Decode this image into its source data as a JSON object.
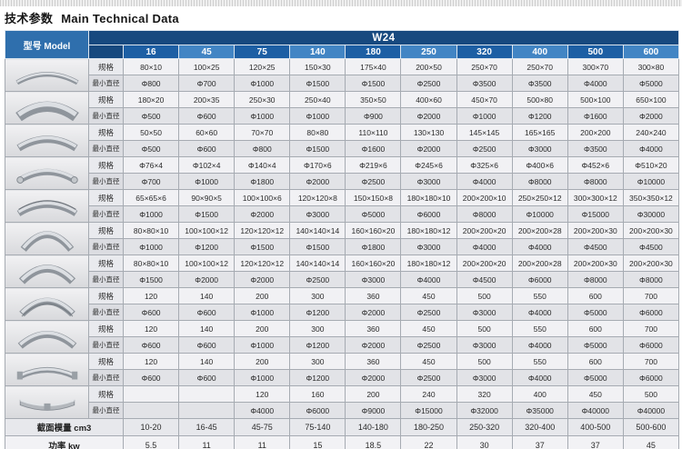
{
  "page_title": {
    "cn": "技术参数",
    "en": "Main Technical Data"
  },
  "colors": {
    "series_navy": "#17497f",
    "model_blue": "#2f6fad",
    "col_dark": "#1d5fa4",
    "col_light": "#4285c4"
  },
  "table": {
    "model_header": "型号 Model",
    "series_header": "W24",
    "columns": [
      "16",
      "45",
      "75",
      "140",
      "180",
      "250",
      "320",
      "400",
      "500",
      "600"
    ],
    "row_labels": {
      "spec": "规格",
      "min_dia": "最小直径"
    },
    "profiles": [
      {
        "icon": "flat-bar-profile-icon",
        "spec": [
          "80×10",
          "100×25",
          "120×25",
          "150×30",
          "175×40",
          "200×50",
          "250×70",
          "250×70",
          "300×70",
          "300×80"
        ],
        "min_dia": [
          "Φ800",
          "Φ700",
          "Φ1000",
          "Φ1500",
          "Φ1500",
          "Φ2500",
          "Φ3500",
          "Φ3500",
          "Φ4000",
          "Φ5000"
        ]
      },
      {
        "icon": "flat-bar-hard-way-profile-icon",
        "spec": [
          "180×20",
          "200×35",
          "250×30",
          "250×40",
          "350×50",
          "400×60",
          "450×70",
          "500×80",
          "500×100",
          "650×100"
        ],
        "min_dia": [
          "Φ500",
          "Φ600",
          "Φ1000",
          "Φ1000",
          "Φ900",
          "Φ2000",
          "Φ1000",
          "Φ1200",
          "Φ1600",
          "Φ2000"
        ]
      },
      {
        "icon": "square-bar-profile-icon",
        "spec": [
          "50×50",
          "60×60",
          "70×70",
          "80×80",
          "110×110",
          "130×130",
          "145×145",
          "165×165",
          "200×200",
          "240×240"
        ],
        "min_dia": [
          "Φ500",
          "Φ600",
          "Φ800",
          "Φ1500",
          "Φ1600",
          "Φ2000",
          "Φ2500",
          "Φ3000",
          "Φ3500",
          "Φ4000"
        ]
      },
      {
        "icon": "pipe-profile-icon",
        "spec": [
          "Φ76×4",
          "Φ102×4",
          "Φ140×4",
          "Φ170×6",
          "Φ219×6",
          "Φ245×6",
          "Φ325×6",
          "Φ400×6",
          "Φ452×6",
          "Φ510×20"
        ],
        "min_dia": [
          "Φ700",
          "Φ1000",
          "Φ1800",
          "Φ2000",
          "Φ2500",
          "Φ3000",
          "Φ4000",
          "Φ8000",
          "Φ8000",
          "Φ10000"
        ]
      },
      {
        "icon": "angle-leg-in-profile-icon",
        "spec": [
          "65×65×6",
          "90×90×5",
          "100×100×6",
          "120×120×8",
          "150×150×8",
          "180×180×10",
          "200×200×10",
          "250×250×12",
          "300×300×12",
          "350×350×12"
        ],
        "min_dia": [
          "Φ1000",
          "Φ1500",
          "Φ2000",
          "Φ3000",
          "Φ5000",
          "Φ6000",
          "Φ8000",
          "Φ10000",
          "Φ15000",
          "Φ30000"
        ]
      },
      {
        "icon": "angle-leg-out-profile-icon",
        "spec": [
          "80×80×10",
          "100×100×12",
          "120×120×12",
          "140×140×14",
          "160×160×20",
          "180×180×12",
          "200×200×20",
          "200×200×28",
          "200×200×30",
          "200×200×30"
        ],
        "min_dia": [
          "Φ1000",
          "Φ1200",
          "Φ1500",
          "Φ1500",
          "Φ1800",
          "Φ3000",
          "Φ4000",
          "Φ4000",
          "Φ4500",
          "Φ4500"
        ]
      },
      {
        "icon": "angle-arch-profile-icon",
        "spec": [
          "80×80×10",
          "100×100×12",
          "120×120×12",
          "140×140×14",
          "160×160×20",
          "180×180×12",
          "200×200×20",
          "200×200×28",
          "200×200×30",
          "200×200×30"
        ],
        "min_dia": [
          "Φ1500",
          "Φ2000",
          "Φ2000",
          "Φ2500",
          "Φ3000",
          "Φ4000",
          "Φ4500",
          "Φ6000",
          "Φ8000",
          "Φ8000"
        ]
      },
      {
        "icon": "channel-profile-icon",
        "spec": [
          "120",
          "140",
          "200",
          "300",
          "360",
          "450",
          "500",
          "550",
          "600",
          "700"
        ],
        "min_dia": [
          "Φ600",
          "Φ600",
          "Φ1000",
          "Φ1200",
          "Φ2000",
          "Φ2500",
          "Φ3000",
          "Φ4000",
          "Φ5000",
          "Φ6000"
        ]
      },
      {
        "icon": "channel-flange-out-profile-icon",
        "spec": [
          "120",
          "140",
          "200",
          "300",
          "360",
          "450",
          "500",
          "550",
          "600",
          "700"
        ],
        "min_dia": [
          "Φ600",
          "Φ600",
          "Φ1000",
          "Φ1200",
          "Φ2000",
          "Φ2500",
          "Φ3000",
          "Φ4000",
          "Φ5000",
          "Φ6000"
        ]
      },
      {
        "icon": "i-beam-profile-icon",
        "spec": [
          "120",
          "140",
          "200",
          "300",
          "360",
          "450",
          "500",
          "550",
          "600",
          "700"
        ],
        "min_dia": [
          "Φ600",
          "Φ600",
          "Φ1000",
          "Φ1200",
          "Φ2000",
          "Φ2500",
          "Φ3000",
          "Φ4000",
          "Φ5000",
          "Φ6000"
        ]
      },
      {
        "icon": "flanged-dish-profile-icon",
        "spec": [
          "",
          "",
          "120",
          "160",
          "200",
          "240",
          "320",
          "400",
          "450",
          "500"
        ],
        "min_dia": [
          "",
          "",
          "Φ4000",
          "Φ6000",
          "Φ9000",
          "Φ15000",
          "Φ32000",
          "Φ35000",
          "Φ40000",
          "Φ40000"
        ]
      }
    ],
    "footer": [
      {
        "label": "截面模量 cm3",
        "values": [
          "10-20",
          "16-45",
          "45-75",
          "75-140",
          "140-180",
          "180-250",
          "250-320",
          "320-400",
          "400-500",
          "500-600"
        ]
      },
      {
        "label": "功率 kw",
        "values": [
          "5.5",
          "11",
          "11",
          "15",
          "18.5",
          "22",
          "30",
          "37",
          "37",
          "45"
        ]
      }
    ]
  }
}
